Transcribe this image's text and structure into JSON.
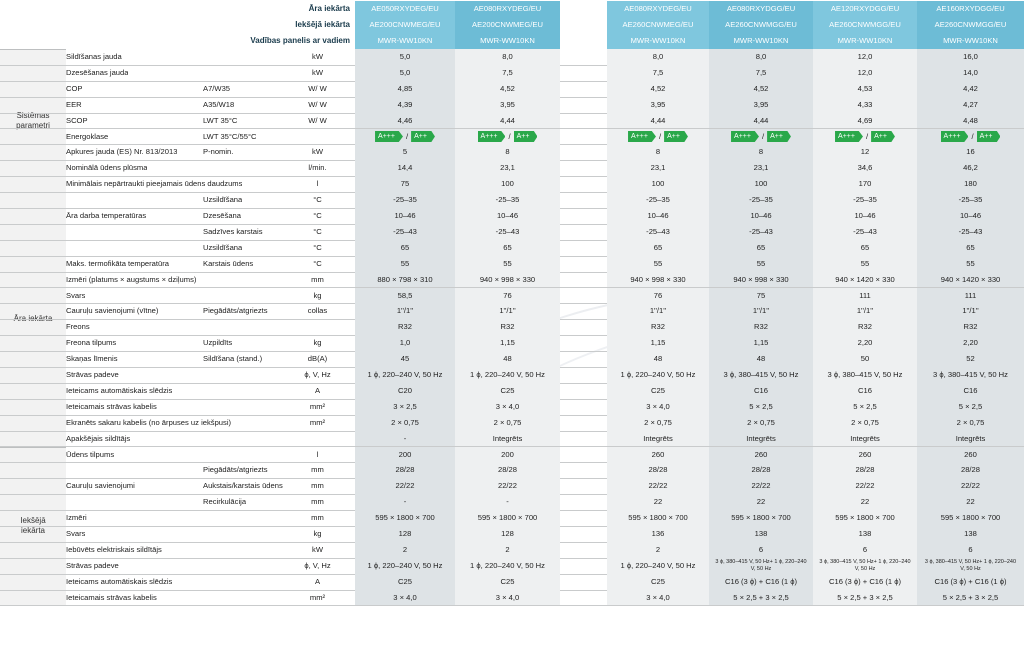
{
  "header": {
    "rows": [
      {
        "label": "Āra iekārta",
        "values": [
          "AE050RXYDEG/EU",
          "AE080RXYDEG/EU",
          "AE080RXYDEG/EU",
          "AE080RXYDGG/EU",
          "AE120RXYDGG/EU",
          "AE160RXYDGG/EU"
        ]
      },
      {
        "label": "Iekšējā iekārta",
        "values": [
          "AE200CNWMEG/EU",
          "AE200CNWMEG/EU",
          "AE260CNWMEG/EU",
          "AE260CNWMGG/EU",
          "AE260CNWMGG/EU",
          "AE260CNWMGG/EU"
        ]
      },
      {
        "label": "Vadības panelis ar vadiem",
        "values": [
          "MWR-WW10KN",
          "MWR-WW10KN",
          "MWR-WW10KN",
          "MWR-WW10KN",
          "MWR-WW10KN",
          "MWR-WW10KN"
        ]
      }
    ]
  },
  "groups": [
    {
      "name": "Sistēmas parametri"
    },
    {
      "name": "Āra iekārta"
    },
    {
      "name": "Iekšējā iekārta"
    }
  ],
  "energy": {
    "left": "A+++",
    "right": "A++",
    "sep": "/"
  },
  "rows": [
    {
      "label": "Sildīšanas jauda",
      "sub": "",
      "unit": "kW",
      "values": [
        "5,0",
        "8,0",
        "8,0",
        "8,0",
        "12,0",
        "16,0"
      ]
    },
    {
      "label": "Dzesēšanas jauda",
      "sub": "",
      "unit": "kW",
      "values": [
        "5,0",
        "7,5",
        "7,5",
        "7,5",
        "12,0",
        "14,0"
      ]
    },
    {
      "label": "COP",
      "sub": "A7/W35",
      "unit": "W/ W",
      "values": [
        "4,85",
        "4,52",
        "4,52",
        "4,52",
        "4,53",
        "4,42"
      ]
    },
    {
      "label": "EER",
      "sub": "A35/W18",
      "unit": "W/ W",
      "values": [
        "4,39",
        "3,95",
        "3,95",
        "3,95",
        "4,33",
        "4,27"
      ]
    },
    {
      "label": "SCOP",
      "sub": "LWT 35°C",
      "unit": "W/ W",
      "values": [
        "4,46",
        "4,44",
        "4,44",
        "4,44",
        "4,69",
        "4,48"
      ]
    },
    {
      "label": "Energoklase",
      "sub": "LWT 35°C/55°C",
      "unit": "",
      "values": [
        "",
        "",
        "",
        "",
        "",
        ""
      ]
    },
    {
      "label": "Apkures jauda (ES) Nr. 813/2013",
      "sub": "P-nomin.",
      "unit": "kW",
      "values": [
        "5",
        "8",
        "8",
        "8",
        "12",
        "16"
      ]
    },
    {
      "label": "Nominālā ūdens plūsma",
      "sub": "",
      "unit": "l/min.",
      "values": [
        "14,4",
        "23,1",
        "23,1",
        "23,1",
        "34,6",
        "46,2"
      ]
    },
    {
      "label": "Minimālais nepārtraukti pieejamais ūdens daudzums",
      "sub": "",
      "unit": "l",
      "values": [
        "75",
        "100",
        "100",
        "100",
        "170",
        "180"
      ]
    },
    {
      "label": "",
      "sub": "Uzsildīšana",
      "unit": "°C",
      "values": [
        "-25–35",
        "-25–35",
        "-25–35",
        "-25–35",
        "-25–35",
        "-25–35"
      ]
    },
    {
      "label": "Āra darba temperatūras",
      "sub": "Dzesēšana",
      "unit": "°C",
      "values": [
        "10–46",
        "10–46",
        "10–46",
        "10–46",
        "10–46",
        "10–46"
      ]
    },
    {
      "label": "",
      "sub": "Sadzīves karstais",
      "unit": "°C",
      "values": [
        "-25–43",
        "-25–43",
        "-25–43",
        "-25–43",
        "-25–43",
        "-25–43"
      ]
    },
    {
      "label": "",
      "sub": "Uzsildīšana",
      "unit": "°C",
      "values": [
        "65",
        "65",
        "65",
        "65",
        "65",
        "65"
      ]
    },
    {
      "label": "Maks. termofikāta temperatūra",
      "sub": "Karstais ūdens",
      "unit": "°C",
      "values": [
        "55",
        "55",
        "55",
        "55",
        "55",
        "55"
      ]
    },
    {
      "label": "Izmēri (platums × augstums × dziļums)",
      "sub": "",
      "unit": "mm",
      "values": [
        "880 × 798 × 310",
        "940 × 998 × 330",
        "940 × 998 × 330",
        "940 × 998 × 330",
        "940 × 1420 × 330",
        "940 × 1420 × 330"
      ]
    },
    {
      "label": "Svars",
      "sub": "",
      "unit": "kg",
      "values": [
        "58,5",
        "76",
        "76",
        "75",
        "111",
        "111"
      ]
    },
    {
      "label": "Cauruļu savienojumi (vītne)",
      "sub": "Piegādāts/atgriezts",
      "unit": "collas",
      "values": [
        "1''/1''",
        "1''/1''",
        "1''/1''",
        "1''/1''",
        "1''/1''",
        "1''/1''"
      ]
    },
    {
      "label": "Freons",
      "sub": "",
      "unit": "",
      "values": [
        "R32",
        "R32",
        "R32",
        "R32",
        "R32",
        "R32"
      ]
    },
    {
      "label": "Freona tilpums",
      "sub": "Uzpildīts",
      "unit": "kg",
      "values": [
        "1,0",
        "1,15",
        "1,15",
        "1,15",
        "2,20",
        "2,20"
      ]
    },
    {
      "label": "Skaņas līmenis",
      "sub": "Sildīšana (stand.)",
      "unit": "dB(A)",
      "values": [
        "45",
        "48",
        "48",
        "48",
        "50",
        "52"
      ]
    },
    {
      "label": "Strāvas padeve",
      "sub": "",
      "unit": "ϕ, V, Hz",
      "values": [
        "1 ϕ, 220–240 V, 50 Hz",
        "1 ϕ, 220–240 V, 50 Hz",
        "1 ϕ, 220–240 V, 50 Hz",
        "3 ϕ, 380–415 V, 50 Hz",
        "3 ϕ, 380–415 V, 50 Hz",
        "3 ϕ, 380–415 V, 50 Hz"
      ]
    },
    {
      "label": "Ieteicams automātiskais slēdzis",
      "sub": "",
      "unit": "A",
      "values": [
        "C20",
        "C25",
        "C25",
        "C16",
        "C16",
        "C16"
      ]
    },
    {
      "label": "Ieteicamais strāvas kabelis",
      "sub": "",
      "unit": "mm²",
      "values": [
        "3 × 2,5",
        "3 × 4,0",
        "3 × 4,0",
        "5 × 2,5",
        "5 × 2,5",
        "5 × 2,5"
      ]
    },
    {
      "label": "Ekranēts sakaru kabelis (no ārpuses uz iekšpusi)",
      "sub": "",
      "unit": "mm²",
      "values": [
        "2 × 0,75",
        "2 × 0,75",
        "2 × 0,75",
        "2 × 0,75",
        "2 × 0,75",
        "2 × 0,75"
      ]
    },
    {
      "label": "Apakšējais sildītājs",
      "sub": "",
      "unit": "",
      "values": [
        "-",
        "Integrēts",
        "Integrēts",
        "Integrēts",
        "Integrēts",
        "Integrēts"
      ]
    },
    {
      "label": "Ūdens tilpums",
      "sub": "",
      "unit": "l",
      "values": [
        "200",
        "200",
        "260",
        "260",
        "260",
        "260"
      ]
    },
    {
      "label": "",
      "sub": "Piegādāts/atgriezts",
      "unit": "mm",
      "values": [
        "28/28",
        "28/28",
        "28/28",
        "28/28",
        "28/28",
        "28/28"
      ]
    },
    {
      "label": "Cauruļu savienojumi",
      "sub": "Aukstais/karstais ūdens",
      "unit": "mm",
      "values": [
        "22/22",
        "22/22",
        "22/22",
        "22/22",
        "22/22",
        "22/22"
      ]
    },
    {
      "label": "",
      "sub": "Recirkulācija",
      "unit": "mm",
      "values": [
        "-",
        "-",
        "22",
        "22",
        "22",
        "22"
      ]
    },
    {
      "label": "Izmēri",
      "sub": "",
      "unit": "mm",
      "values": [
        "595 × 1800 × 700",
        "595 × 1800 × 700",
        "595 × 1800 × 700",
        "595 × 1800 × 700",
        "595 × 1800 × 700",
        "595 × 1800 × 700"
      ]
    },
    {
      "label": "Svars",
      "sub": "",
      "unit": "kg",
      "values": [
        "128",
        "128",
        "136",
        "138",
        "138",
        "138"
      ]
    },
    {
      "label": "Iebūvēts elektriskais sildītājs",
      "sub": "",
      "unit": "kW",
      "values": [
        "2",
        "2",
        "2",
        "6",
        "6",
        "6"
      ]
    },
    {
      "label": "Strāvas padeve",
      "sub": "",
      "unit": "ϕ, V, Hz",
      "values": [
        "1 ϕ, 220–240 V, 50 Hz",
        "1 ϕ, 220–240 V, 50 Hz",
        "1 ϕ, 220–240 V, 50 Hz",
        "3 ϕ, 380–415 V, 50 Hz+ 1 ϕ, 220–240 V, 50 Hz",
        "3 ϕ, 380–415 V, 50 Hz+ 1 ϕ, 220–240 V, 50 Hz",
        "3 ϕ, 380–415 V, 50 Hz+ 1 ϕ, 220–240 V, 50 Hz"
      ]
    },
    {
      "label": "Ieteicams automātiskais slēdzis",
      "sub": "",
      "unit": "A",
      "values": [
        "C25",
        "C25",
        "C25",
        "C16 (3 ϕ) + C16 (1 ϕ)",
        "C16 (3 ϕ) + C16 (1 ϕ)",
        "C16 (3 ϕ) + C16 (1 ϕ)"
      ]
    },
    {
      "label": "Ieteicamais strāvas kabelis",
      "sub": "",
      "unit": "mm²",
      "values": [
        "3 × 4,0",
        "3 × 4,0",
        "3 × 4,0",
        "5 × 2,5 + 3 × 2,5",
        "5 × 2,5 + 3 × 2,5",
        "5 × 2,5 + 3 × 2,5"
      ]
    }
  ]
}
